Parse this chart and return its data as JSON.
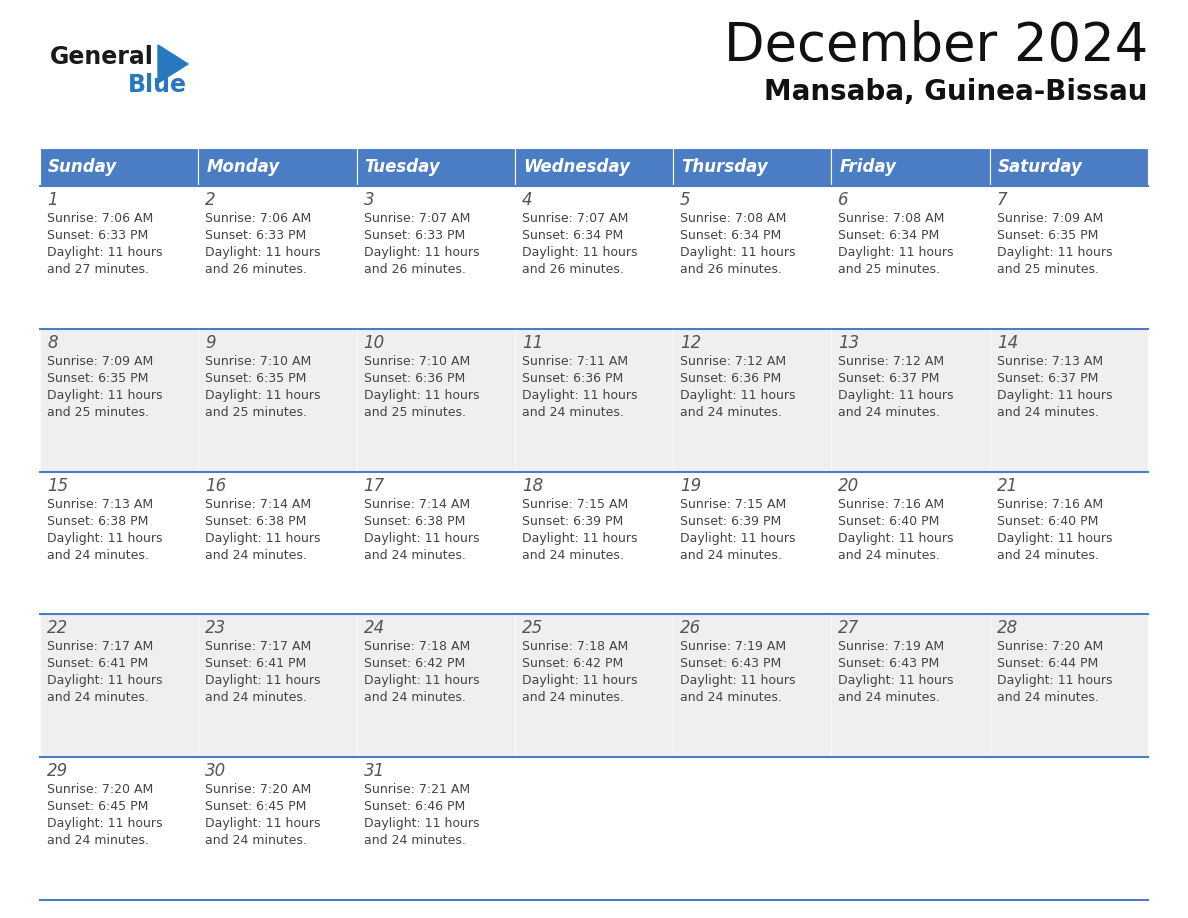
{
  "title": "December 2024",
  "subtitle": "Mansaba, Guinea-Bissau",
  "header_bg": "#4A7DC4",
  "header_text_color": "#FFFFFF",
  "cell_bg_white": "#FFFFFF",
  "cell_bg_gray": "#EFEFEF",
  "day_number_color": "#555555",
  "cell_text_color": "#444444",
  "line_color": "#4A7DC4",
  "days_of_week": [
    "Sunday",
    "Monday",
    "Tuesday",
    "Wednesday",
    "Thursday",
    "Friday",
    "Saturday"
  ],
  "calendar_data": [
    [
      {
        "day": 1,
        "sunrise": "7:06 AM",
        "sunset": "6:33 PM",
        "daylight": "11 hours and 27 minutes."
      },
      {
        "day": 2,
        "sunrise": "7:06 AM",
        "sunset": "6:33 PM",
        "daylight": "11 hours and 26 minutes."
      },
      {
        "day": 3,
        "sunrise": "7:07 AM",
        "sunset": "6:33 PM",
        "daylight": "11 hours and 26 minutes."
      },
      {
        "day": 4,
        "sunrise": "7:07 AM",
        "sunset": "6:34 PM",
        "daylight": "11 hours and 26 minutes."
      },
      {
        "day": 5,
        "sunrise": "7:08 AM",
        "sunset": "6:34 PM",
        "daylight": "11 hours and 26 minutes."
      },
      {
        "day": 6,
        "sunrise": "7:08 AM",
        "sunset": "6:34 PM",
        "daylight": "11 hours and 25 minutes."
      },
      {
        "day": 7,
        "sunrise": "7:09 AM",
        "sunset": "6:35 PM",
        "daylight": "11 hours and 25 minutes."
      }
    ],
    [
      {
        "day": 8,
        "sunrise": "7:09 AM",
        "sunset": "6:35 PM",
        "daylight": "11 hours and 25 minutes."
      },
      {
        "day": 9,
        "sunrise": "7:10 AM",
        "sunset": "6:35 PM",
        "daylight": "11 hours and 25 minutes."
      },
      {
        "day": 10,
        "sunrise": "7:10 AM",
        "sunset": "6:36 PM",
        "daylight": "11 hours and 25 minutes."
      },
      {
        "day": 11,
        "sunrise": "7:11 AM",
        "sunset": "6:36 PM",
        "daylight": "11 hours and 24 minutes."
      },
      {
        "day": 12,
        "sunrise": "7:12 AM",
        "sunset": "6:36 PM",
        "daylight": "11 hours and 24 minutes."
      },
      {
        "day": 13,
        "sunrise": "7:12 AM",
        "sunset": "6:37 PM",
        "daylight": "11 hours and 24 minutes."
      },
      {
        "day": 14,
        "sunrise": "7:13 AM",
        "sunset": "6:37 PM",
        "daylight": "11 hours and 24 minutes."
      }
    ],
    [
      {
        "day": 15,
        "sunrise": "7:13 AM",
        "sunset": "6:38 PM",
        "daylight": "11 hours and 24 minutes."
      },
      {
        "day": 16,
        "sunrise": "7:14 AM",
        "sunset": "6:38 PM",
        "daylight": "11 hours and 24 minutes."
      },
      {
        "day": 17,
        "sunrise": "7:14 AM",
        "sunset": "6:38 PM",
        "daylight": "11 hours and 24 minutes."
      },
      {
        "day": 18,
        "sunrise": "7:15 AM",
        "sunset": "6:39 PM",
        "daylight": "11 hours and 24 minutes."
      },
      {
        "day": 19,
        "sunrise": "7:15 AM",
        "sunset": "6:39 PM",
        "daylight": "11 hours and 24 minutes."
      },
      {
        "day": 20,
        "sunrise": "7:16 AM",
        "sunset": "6:40 PM",
        "daylight": "11 hours and 24 minutes."
      },
      {
        "day": 21,
        "sunrise": "7:16 AM",
        "sunset": "6:40 PM",
        "daylight": "11 hours and 24 minutes."
      }
    ],
    [
      {
        "day": 22,
        "sunrise": "7:17 AM",
        "sunset": "6:41 PM",
        "daylight": "11 hours and 24 minutes."
      },
      {
        "day": 23,
        "sunrise": "7:17 AM",
        "sunset": "6:41 PM",
        "daylight": "11 hours and 24 minutes."
      },
      {
        "day": 24,
        "sunrise": "7:18 AM",
        "sunset": "6:42 PM",
        "daylight": "11 hours and 24 minutes."
      },
      {
        "day": 25,
        "sunrise": "7:18 AM",
        "sunset": "6:42 PM",
        "daylight": "11 hours and 24 minutes."
      },
      {
        "day": 26,
        "sunrise": "7:19 AM",
        "sunset": "6:43 PM",
        "daylight": "11 hours and 24 minutes."
      },
      {
        "day": 27,
        "sunrise": "7:19 AM",
        "sunset": "6:43 PM",
        "daylight": "11 hours and 24 minutes."
      },
      {
        "day": 28,
        "sunrise": "7:20 AM",
        "sunset": "6:44 PM",
        "daylight": "11 hours and 24 minutes."
      }
    ],
    [
      {
        "day": 29,
        "sunrise": "7:20 AM",
        "sunset": "6:45 PM",
        "daylight": "11 hours and 24 minutes."
      },
      {
        "day": 30,
        "sunrise": "7:20 AM",
        "sunset": "6:45 PM",
        "daylight": "11 hours and 24 minutes."
      },
      {
        "day": 31,
        "sunrise": "7:21 AM",
        "sunset": "6:46 PM",
        "daylight": "11 hours and 24 minutes."
      },
      null,
      null,
      null,
      null
    ]
  ],
  "logo_color_general": "#1a1a1a",
  "logo_color_blue": "#2878C0",
  "logo_triangle_color": "#2878C0",
  "title_fontsize": 38,
  "subtitle_fontsize": 20,
  "header_fontsize": 12,
  "day_num_fontsize": 12,
  "cell_fontsize": 9
}
